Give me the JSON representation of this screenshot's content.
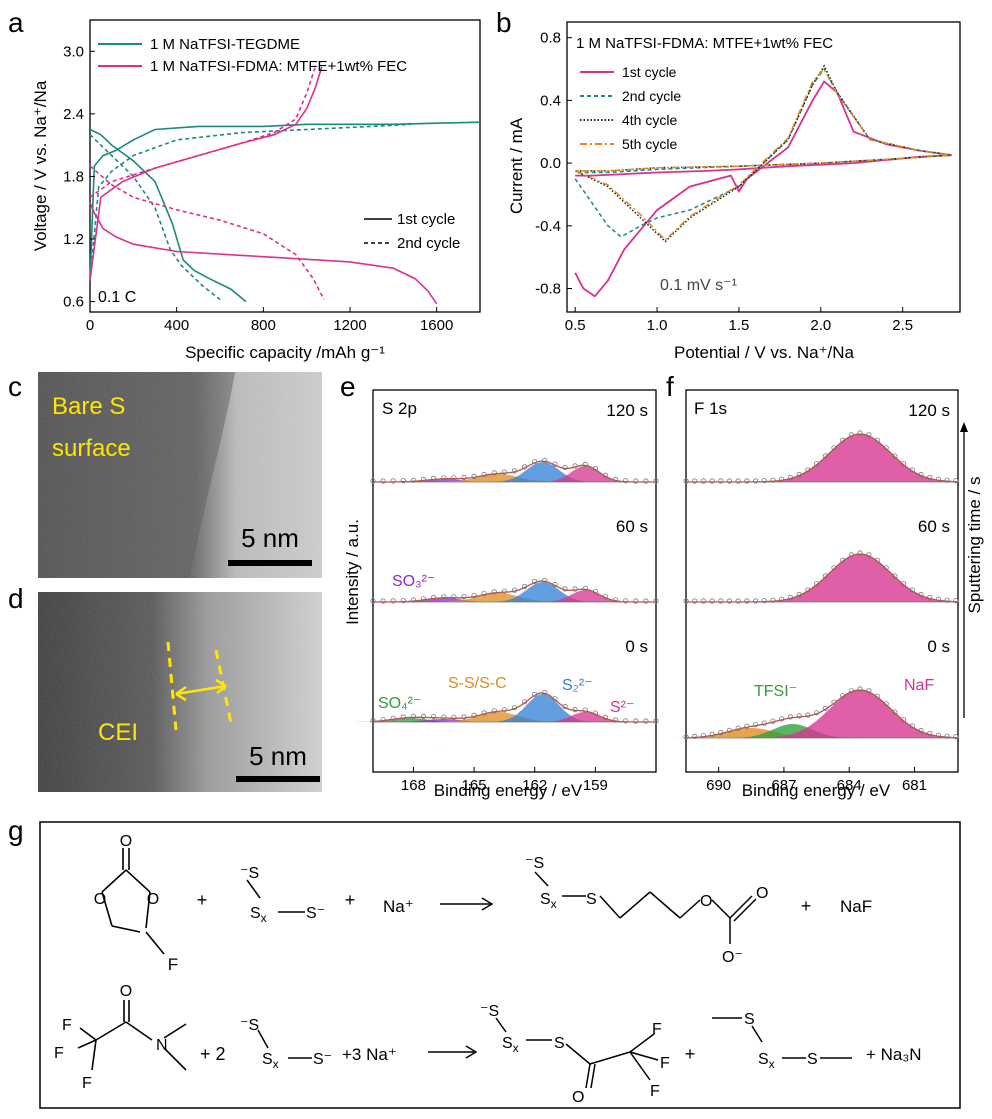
{
  "panel_labels": {
    "a": "a",
    "b": "b",
    "c": "c",
    "d": "d",
    "e": "e",
    "f": "f",
    "g": "g"
  },
  "colors": {
    "teal": "#1a8a80",
    "magenta": "#d6338f",
    "green": "#2e9e3a",
    "orange": "#e08a1e",
    "blue": "#2f7fd6",
    "purple": "#8a2bd0",
    "yellow": "#ffe600",
    "fit": "#c0504d"
  },
  "chart_data": [
    {
      "id": "a",
      "type": "line",
      "title": "",
      "xlabel": "Specific capacity /mAh g⁻¹",
      "ylabel": "Voltage / V vs. Na⁺/Na",
      "xlim": [
        0,
        1800
      ],
      "ylim": [
        0.5,
        3.3
      ],
      "xticks": [
        "0",
        "400",
        "800",
        "1200",
        "1600"
      ],
      "yticks": [
        "0.6",
        "1.2",
        "1.8",
        "2.4",
        "3.0"
      ],
      "annotation": "0.1 C",
      "legend": [
        "1 M NaTFSI-TEGDME",
        "1 M NaTFSI-FDMA: MTFE+1wt% FEC"
      ],
      "style_legend": [
        "1st cycle",
        "2nd cycle"
      ],
      "series": [
        {
          "name": "TEGDME 1st discharge",
          "x": [
            0,
            50,
            100,
            200,
            300,
            380,
            430,
            480,
            550,
            650,
            720
          ],
          "y": [
            2.25,
            2.2,
            2.1,
            1.95,
            1.75,
            1.35,
            1.0,
            0.9,
            0.82,
            0.72,
            0.6
          ]
        },
        {
          "name": "TEGDME 1st charge",
          "x": [
            0,
            20,
            60,
            120,
            200,
            300,
            500,
            800,
            1000,
            1200,
            1400,
            1600,
            1800
          ],
          "y": [
            0.8,
            1.9,
            2.0,
            2.05,
            2.15,
            2.25,
            2.28,
            2.28,
            2.3,
            2.3,
            2.3,
            2.31,
            2.32
          ]
        },
        {
          "name": "TEGDME 2nd discharge",
          "x": [
            0,
            100,
            200,
            300,
            370,
            420,
            470,
            520,
            600
          ],
          "y": [
            2.2,
            2.0,
            1.8,
            1.5,
            1.1,
            0.95,
            0.85,
            0.75,
            0.62
          ]
        },
        {
          "name": "TEGDME 2nd charge",
          "x": [
            0,
            40,
            100,
            200,
            400,
            700,
            1000,
            1300,
            1480
          ],
          "y": [
            0.8,
            1.7,
            1.85,
            2.0,
            2.15,
            2.22,
            2.25,
            2.28,
            2.3
          ]
        },
        {
          "name": "FDMA 1st discharge",
          "x": [
            0,
            20,
            60,
            120,
            200,
            400,
            800,
            1200,
            1400,
            1500,
            1560,
            1600
          ],
          "y": [
            1.55,
            1.45,
            1.3,
            1.22,
            1.15,
            1.08,
            1.03,
            0.98,
            0.92,
            0.82,
            0.7,
            0.58
          ]
        },
        {
          "name": "FDMA 1st charge",
          "x": [
            0,
            50,
            150,
            300,
            500,
            700,
            850,
            950,
            1000,
            1040,
            1070
          ],
          "y": [
            0.8,
            1.6,
            1.75,
            1.88,
            2.0,
            2.12,
            2.2,
            2.3,
            2.45,
            2.65,
            2.85
          ]
        },
        {
          "name": "FDMA 2nd discharge",
          "x": [
            0,
            100,
            200,
            400,
            600,
            800,
            950,
            1030,
            1080
          ],
          "y": [
            1.9,
            1.72,
            1.6,
            1.48,
            1.38,
            1.25,
            1.05,
            0.82,
            0.62
          ]
        },
        {
          "name": "FDMA 2nd charge",
          "x": [
            0,
            100,
            300,
            500,
            700,
            850,
            950,
            1000,
            1040
          ],
          "y": [
            1.6,
            1.75,
            1.88,
            2.0,
            2.12,
            2.22,
            2.35,
            2.6,
            2.85
          ]
        }
      ]
    },
    {
      "id": "b",
      "type": "line",
      "title": "1 M NaTFSI-FDMA: MTFE+1wt% FEC",
      "xlabel": "Potential / V vs. Na⁺/Na",
      "ylabel": "Current / mA",
      "xlim": [
        0.45,
        2.85
      ],
      "ylim": [
        -0.95,
        0.9
      ],
      "xticks": [
        "0.5",
        "1.0",
        "1.5",
        "2.0",
        "2.5"
      ],
      "yticks": [
        "-0.8",
        "-0.4",
        "0.0",
        "0.4",
        "0.8"
      ],
      "annotation": "0.1 mV s⁻¹",
      "legend": [
        "1st cycle",
        "2nd cycle",
        "4th cycle",
        "5th cycle"
      ],
      "series": [
        {
          "name": "1st cycle",
          "x": [
            0.5,
            0.55,
            0.62,
            0.7,
            0.8,
            1.0,
            1.2,
            1.45,
            1.5,
            1.55,
            1.8,
            1.95,
            2.02,
            2.1,
            2.2,
            2.4,
            2.6,
            2.8,
            2.6,
            2.2,
            1.8,
            1.5,
            1.3,
            1.0,
            0.8,
            0.6,
            0.5
          ],
          "y": [
            -0.7,
            -0.8,
            -0.85,
            -0.75,
            -0.55,
            -0.3,
            -0.15,
            -0.08,
            -0.18,
            -0.1,
            0.1,
            0.4,
            0.52,
            0.45,
            0.2,
            0.12,
            0.08,
            0.05,
            0.04,
            0.0,
            -0.02,
            -0.04,
            -0.05,
            -0.06,
            -0.07,
            -0.08,
            -0.08
          ]
        },
        {
          "name": "2nd cycle",
          "x": [
            0.5,
            0.6,
            0.7,
            0.78,
            0.9,
            1.0,
            1.2,
            1.5,
            1.8,
            1.95,
            2.02,
            2.1,
            2.3,
            2.6,
            2.8,
            2.5,
            2.0,
            1.5,
            1.0,
            0.7,
            0.5
          ],
          "y": [
            -0.1,
            -0.25,
            -0.4,
            -0.47,
            -0.4,
            -0.35,
            -0.3,
            -0.15,
            0.15,
            0.5,
            0.6,
            0.45,
            0.15,
            0.08,
            0.05,
            0.03,
            0.0,
            -0.02,
            -0.04,
            -0.06,
            -0.06
          ]
        },
        {
          "name": "4th cycle",
          "x": [
            0.5,
            0.7,
            0.9,
            1.05,
            1.2,
            1.5,
            1.8,
            1.95,
            2.02,
            2.1,
            2.3,
            2.6,
            2.8,
            2.5,
            2.0,
            1.5,
            1.0,
            0.7,
            0.5
          ],
          "y": [
            -0.05,
            -0.15,
            -0.35,
            -0.5,
            -0.35,
            -0.15,
            0.15,
            0.5,
            0.62,
            0.45,
            0.15,
            0.08,
            0.05,
            0.03,
            0.0,
            -0.02,
            -0.03,
            -0.05,
            -0.05
          ]
        },
        {
          "name": "5th cycle",
          "x": [
            0.5,
            0.7,
            0.9,
            1.05,
            1.2,
            1.5,
            1.8,
            1.95,
            2.02,
            2.1,
            2.3,
            2.6,
            2.8,
            2.5,
            2.0,
            1.5,
            1.0,
            0.7,
            0.5
          ],
          "y": [
            -0.05,
            -0.14,
            -0.33,
            -0.49,
            -0.34,
            -0.14,
            0.16,
            0.52,
            0.6,
            0.44,
            0.15,
            0.08,
            0.05,
            0.03,
            0.0,
            -0.02,
            -0.03,
            -0.05,
            -0.05
          ]
        }
      ]
    },
    {
      "id": "e",
      "type": "line",
      "title": "S 2p",
      "xlabel": "Binding energy / eV",
      "ylabel": "Intensity / a.u.",
      "xticks": [
        "168",
        "165",
        "162",
        "159"
      ],
      "xlim": [
        170,
        156
      ],
      "times": [
        "120 s",
        "60 s",
        "0 s"
      ],
      "peak_labels": [
        "SO₃²⁻",
        "SO₄²⁻",
        "S-S/S-C",
        "S₂²⁻",
        "S²⁻"
      ],
      "peaks": [
        {
          "name": "SO4",
          "center": 168.2,
          "color": "green"
        },
        {
          "name": "SO3",
          "center": 166.5,
          "color": "purple"
        },
        {
          "name": "S-S/S-C",
          "center": 163.8,
          "color": "orange"
        },
        {
          "name": "S2",
          "center": 161.6,
          "color": "blue"
        },
        {
          "name": "S",
          "center": 159.5,
          "color": "magenta"
        }
      ]
    },
    {
      "id": "f",
      "type": "line",
      "title": "F 1s",
      "xlabel": "Binding energy / eV",
      "ylabel": "Sputtering time / s",
      "xticks": [
        "690",
        "687",
        "684",
        "681"
      ],
      "xlim": [
        691.5,
        679
      ],
      "times": [
        "120 s",
        "60 s",
        "0 s"
      ],
      "peak_labels": [
        "TFSI⁻",
        "NaF"
      ],
      "peaks": [
        {
          "name": "TFSI",
          "center": 688.5,
          "color": "orange"
        },
        {
          "name": "TFSI2",
          "center": 686.6,
          "color": "green"
        },
        {
          "name": "NaF",
          "center": 683.5,
          "color": "magenta"
        }
      ]
    }
  ],
  "tem": {
    "c_label": "Bare S surface",
    "c_label1": "Bare S",
    "c_label2": "surface",
    "c_scale": "5 nm",
    "d_label": "CEI",
    "d_scale": "5 nm"
  },
  "scheme": {
    "r1": {
      "plus1": "+",
      "plus2": "+",
      "na": "Na⁺",
      "plus3": "+",
      "naf": "NaF",
      "F": "F",
      "O": "O",
      "Sx": "Sx",
      "S": "S"
    },
    "r2": {
      "two": "+ 2",
      "three": "+3 Na⁺",
      "plus": "+",
      "na3n": "+ Na₃N",
      "F": "F",
      "N": "N",
      "O": "O"
    }
  }
}
